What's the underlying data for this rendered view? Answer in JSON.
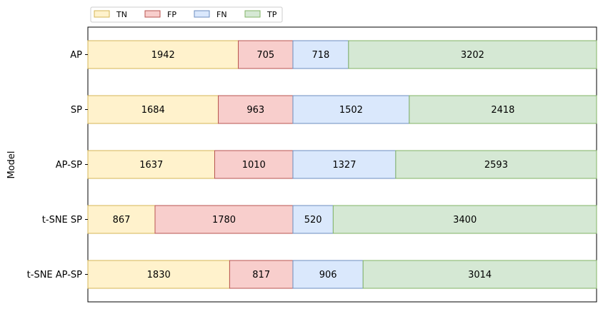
{
  "chart_data": {
    "type": "bar",
    "orientation": "horizontal",
    "stacked": true,
    "categories": [
      "AP",
      "SP",
      "AP-SP",
      "t-SNE SP",
      "t-SNE AP-SP"
    ],
    "series": [
      {
        "name": "TN",
        "values": [
          1942,
          1684,
          1637,
          867,
          1830
        ],
        "fill": "#fff2cc",
        "stroke": "#d6b656"
      },
      {
        "name": "FP",
        "values": [
          705,
          963,
          1010,
          1780,
          817
        ],
        "fill": "#f8cecc",
        "stroke": "#b85450"
      },
      {
        "name": "FN",
        "values": [
          718,
          1502,
          1327,
          520,
          906
        ],
        "fill": "#dae8fc",
        "stroke": "#6c8ebf"
      },
      {
        "name": "TP",
        "values": [
          3202,
          2418,
          2593,
          3400,
          3014
        ],
        "fill": "#d5e8d4",
        "stroke": "#82b366"
      }
    ],
    "xlabel": "",
    "ylabel": "Model",
    "xlim": [
      0,
      6567
    ],
    "x_ticks_shown": false,
    "grid": false,
    "legend": "top-left, outside plot, single row"
  }
}
